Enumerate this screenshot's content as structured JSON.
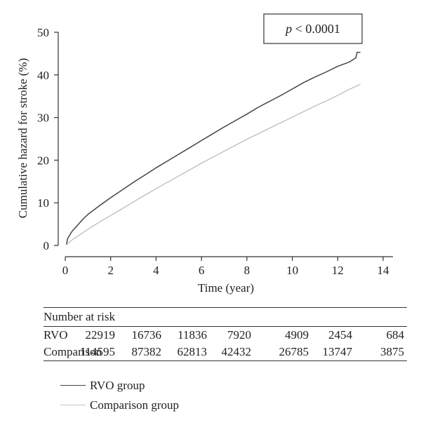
{
  "chart_data": {
    "type": "line",
    "title": "",
    "xlabel": "Time (year)",
    "ylabel": "Cumulative hazard for stroke (%)",
    "xlim": [
      0,
      14
    ],
    "ylim": [
      0,
      50
    ],
    "xticks": [
      0,
      2,
      4,
      6,
      8,
      10,
      12,
      14
    ],
    "yticks": [
      0,
      10,
      20,
      30,
      40,
      50
    ],
    "grid": false,
    "annotation": "p < 0.0001",
    "annotation_p": "p",
    "annotation_rest": " < 0.0001",
    "series": [
      {
        "name": "RVO group",
        "color": "#444444",
        "x": [
          0.05,
          0.1,
          0.2,
          0.3,
          0.5,
          0.75,
          1,
          1.5,
          2,
          2.5,
          3,
          3.5,
          4,
          4.5,
          5,
          5.5,
          6,
          6.5,
          7,
          7.5,
          8,
          8.5,
          9,
          9.5,
          10,
          10.5,
          11,
          11.5,
          12,
          12.5,
          12.8,
          12.85,
          13
        ],
        "y": [
          0.1,
          1.5,
          2.5,
          3.3,
          4.5,
          6.0,
          7.3,
          9.3,
          11.2,
          13.0,
          14.8,
          16.5,
          18.2,
          19.8,
          21.4,
          23.0,
          24.6,
          26.2,
          27.8,
          29.3,
          30.8,
          32.4,
          33.8,
          35.2,
          36.7,
          38.2,
          39.5,
          40.7,
          42.0,
          43.0,
          44.0,
          45.3,
          45.3
        ]
      },
      {
        "name": "Comparison group",
        "color": "#c4c4c4",
        "x": [
          0.05,
          0.1,
          0.3,
          0.5,
          1,
          1.5,
          2,
          2.5,
          3,
          3.5,
          4,
          4.5,
          5,
          5.5,
          6,
          6.5,
          7,
          7.5,
          8,
          8.5,
          9,
          9.5,
          10,
          10.5,
          11,
          11.5,
          12,
          12.5,
          13
        ],
        "y": [
          0.1,
          0.4,
          1.3,
          2.0,
          3.8,
          5.5,
          7.0,
          8.6,
          10.2,
          11.8,
          13.3,
          14.8,
          16.3,
          17.8,
          19.3,
          20.7,
          22.1,
          23.5,
          24.9,
          26.2,
          27.5,
          28.8,
          30.1,
          31.4,
          32.7,
          33.9,
          35.2,
          36.6,
          37.8
        ]
      }
    ]
  },
  "risk_table": {
    "title": "Number at risk",
    "rows": [
      {
        "label": "RVO",
        "values": [
          "22919",
          "16736",
          "11836",
          "7920",
          "4909",
          "2454",
          "684"
        ]
      },
      {
        "label": "Comparison",
        "values": [
          "114595",
          "87382",
          "62813",
          "42432",
          "26785",
          "13747",
          "3875"
        ]
      }
    ]
  },
  "legend": [
    {
      "label": "RVO group",
      "color": "#444444"
    },
    {
      "label": "Comparison group",
      "color": "#c4c4c4"
    }
  ]
}
